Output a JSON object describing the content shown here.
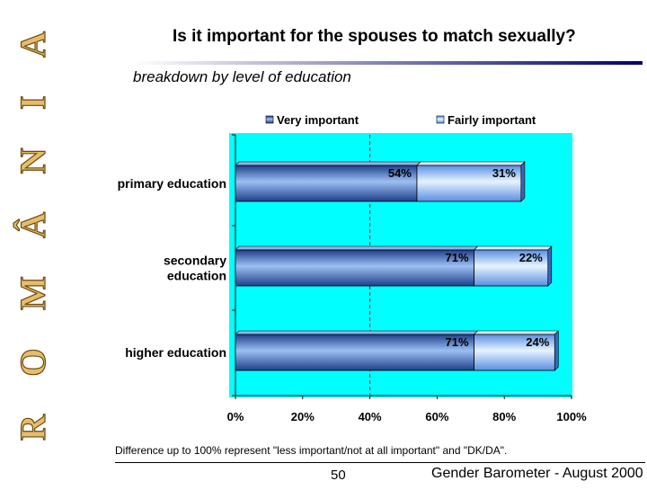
{
  "side_word": "ROMÂNIA",
  "title": "Is it important for the spouses to match sexually?",
  "subtitle": "breakdown by level of education",
  "footnote": "Difference up to 100% represent \"less important/not at all important\" and \"DK/DA\".",
  "page_number": "50",
  "source": "Gender Barometer - August 2000",
  "colors": {
    "plot_background": "#00ffff",
    "very_important": "#4a7bd8",
    "fairly_important": "#b9dcff",
    "title_rule_dark": "#00006b",
    "reference_line": "#cc0000"
  },
  "chart_data": {
    "type": "bar",
    "orientation": "horizontal",
    "stacked": true,
    "categories": [
      "primary education",
      "secondary education",
      "higher education"
    ],
    "category_lines": [
      [
        "primary education"
      ],
      [
        "secondary",
        "education"
      ],
      [
        "higher education"
      ]
    ],
    "series": [
      {
        "name": "Very important",
        "values": [
          54,
          71,
          71
        ],
        "labels": [
          "54%",
          "71%",
          "71%"
        ]
      },
      {
        "name": "Fairly important",
        "values": [
          31,
          22,
          24
        ],
        "labels": [
          "31%",
          "22%",
          "24%"
        ]
      }
    ],
    "xlim": [
      0,
      100
    ],
    "xticks": [
      0,
      20,
      40,
      60,
      80,
      100
    ],
    "xtick_labels": [
      "0%",
      "20%",
      "40%",
      "60%",
      "80%",
      "100%"
    ],
    "reference_line_x": 40,
    "legend_position": "top",
    "grid": false
  }
}
